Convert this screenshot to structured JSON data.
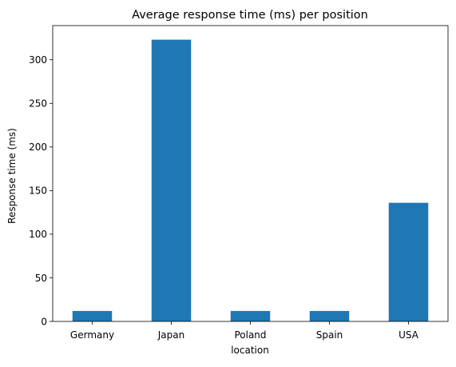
{
  "chart_data": {
    "type": "bar",
    "title": "Average response time (ms) per position",
    "xlabel": "location",
    "ylabel": "Response time (ms)",
    "categories": [
      "Germany",
      "Japan",
      "Poland",
      "Spain",
      "USA"
    ],
    "values": [
      12,
      323,
      12,
      12,
      136
    ],
    "ylim": [
      0,
      339.15
    ],
    "yticks": [
      0,
      50,
      100,
      150,
      200,
      250,
      300
    ],
    "bar_color": "#1f77b4",
    "grid": false,
    "legend": "none"
  }
}
